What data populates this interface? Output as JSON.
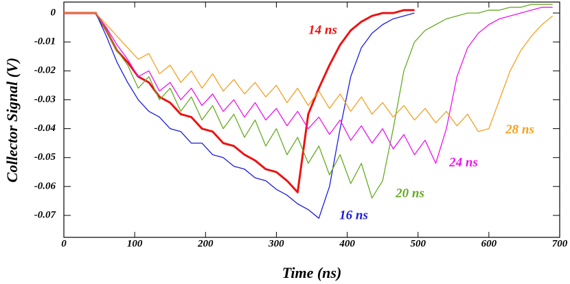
{
  "chart_data": {
    "type": "line",
    "x_label": "Time (ns)",
    "y_label": "Collector Signal (V)",
    "xlim": [
      0,
      700
    ],
    "ylim": [
      -0.0776,
      0.0038
    ],
    "xticks": [
      0,
      100,
      200,
      300,
      400,
      500,
      600,
      700
    ],
    "yticks": [
      0,
      -0.01,
      -0.02,
      -0.03,
      -0.04,
      -0.05,
      -0.06,
      -0.07
    ],
    "grid": false,
    "x": [
      0,
      15,
      30,
      45,
      60,
      75,
      90,
      105,
      120,
      135,
      150,
      165,
      180,
      195,
      210,
      225,
      240,
      255,
      270,
      285,
      300,
      315,
      330,
      345,
      360,
      375,
      390,
      405,
      420,
      435,
      450,
      465,
      480,
      495,
      510,
      525,
      540,
      555,
      570,
      585,
      600,
      615,
      630,
      645,
      660,
      675,
      690
    ],
    "series": [
      {
        "name": "14 ns",
        "color": "#ee1111",
        "values": [
          0,
          0,
          0,
          0,
          -0.006,
          -0.013,
          -0.017,
          -0.022,
          -0.024,
          -0.029,
          -0.031,
          -0.035,
          -0.036,
          -0.04,
          -0.041,
          -0.045,
          -0.046,
          -0.049,
          -0.051,
          -0.054,
          -0.055,
          -0.058,
          -0.062,
          -0.035,
          -0.026,
          -0.018,
          -0.011,
          -0.006,
          -0.003,
          -0.001,
          0,
          0,
          0.001,
          0.001,
          null,
          null,
          null,
          null,
          null,
          null,
          null,
          null,
          null,
          null,
          null,
          null,
          null
        ]
      },
      {
        "name": "16 ns",
        "color": "#1a1adf",
        "values": [
          0,
          0,
          0,
          0,
          -0.008,
          -0.017,
          -0.024,
          -0.03,
          -0.034,
          -0.036,
          -0.04,
          -0.041,
          -0.045,
          -0.045,
          -0.049,
          -0.05,
          -0.053,
          -0.054,
          -0.057,
          -0.058,
          -0.061,
          -0.063,
          -0.066,
          -0.068,
          -0.071,
          -0.06,
          -0.04,
          -0.022,
          -0.012,
          -0.007,
          -0.004,
          -0.002,
          -0.001,
          0,
          null,
          null,
          null,
          null,
          null,
          null,
          null,
          null,
          null,
          null,
          null,
          null,
          null
        ]
      },
      {
        "name": "20 ns",
        "color": "#66aa22",
        "values": [
          0,
          0,
          0,
          0,
          -0.006,
          -0.013,
          -0.018,
          -0.026,
          -0.022,
          -0.03,
          -0.026,
          -0.034,
          -0.029,
          -0.037,
          -0.032,
          -0.04,
          -0.035,
          -0.043,
          -0.037,
          -0.046,
          -0.04,
          -0.049,
          -0.043,
          -0.052,
          -0.046,
          -0.056,
          -0.049,
          -0.059,
          -0.052,
          -0.064,
          -0.058,
          -0.04,
          -0.02,
          -0.01,
          -0.006,
          -0.004,
          -0.002,
          -0.001,
          0,
          0,
          0.001,
          0.001,
          0.002,
          0.002,
          0.003,
          0.003,
          0.003
        ]
      },
      {
        "name": "24 ns",
        "color": "#ee11ee",
        "values": [
          0,
          0,
          0,
          0,
          -0.005,
          -0.011,
          -0.016,
          -0.022,
          -0.02,
          -0.027,
          -0.024,
          -0.03,
          -0.026,
          -0.032,
          -0.028,
          -0.034,
          -0.03,
          -0.036,
          -0.031,
          -0.037,
          -0.033,
          -0.039,
          -0.034,
          -0.04,
          -0.036,
          -0.042,
          -0.037,
          -0.044,
          -0.039,
          -0.045,
          -0.04,
          -0.047,
          -0.042,
          -0.049,
          -0.044,
          -0.052,
          -0.04,
          -0.022,
          -0.012,
          -0.007,
          -0.004,
          -0.002,
          -0.001,
          0,
          0.001,
          0.002,
          0.002
        ]
      },
      {
        "name": "28 ns",
        "color": "#f5a020",
        "values": [
          0,
          0,
          0,
          0,
          -0.004,
          -0.008,
          -0.012,
          -0.016,
          -0.014,
          -0.021,
          -0.018,
          -0.024,
          -0.02,
          -0.026,
          -0.021,
          -0.027,
          -0.023,
          -0.028,
          -0.024,
          -0.029,
          -0.025,
          -0.031,
          -0.026,
          -0.032,
          -0.027,
          -0.033,
          -0.028,
          -0.034,
          -0.029,
          -0.035,
          -0.031,
          -0.036,
          -0.032,
          -0.037,
          -0.033,
          -0.038,
          -0.034,
          -0.039,
          -0.035,
          -0.041,
          -0.04,
          -0.03,
          -0.02,
          -0.013,
          -0.008,
          -0.004,
          -0.001
        ]
      }
    ]
  }
}
